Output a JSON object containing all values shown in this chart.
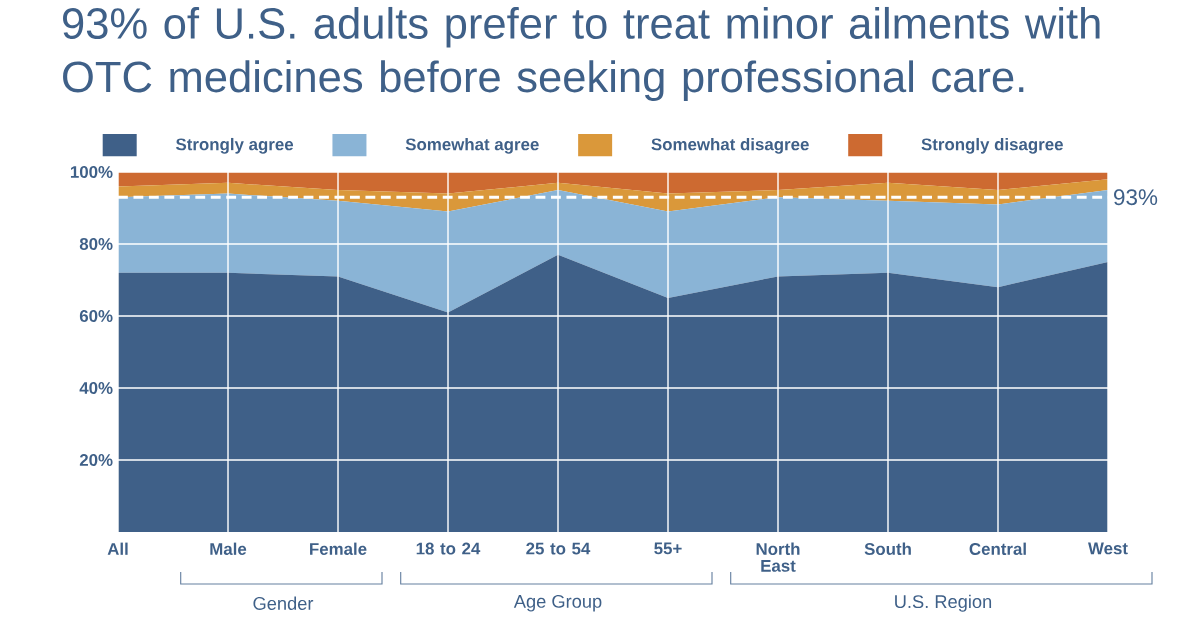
{
  "chart_data": {
    "type": "area",
    "stacked": true,
    "title": "93% of U.S. adults prefer to treat minor ailments with OTC medicines before seeking professional care.",
    "categories": [
      "All",
      "Male",
      "Female",
      "18 to 24",
      "25 to 54",
      "55+",
      "North East",
      "South",
      "Central",
      "West"
    ],
    "series": [
      {
        "name": "Strongly agree",
        "color": "#3f6088",
        "values": [
          72,
          72,
          71,
          61,
          77,
          65,
          71,
          72,
          68,
          75
        ]
      },
      {
        "name": "Somewhat agree",
        "color": "#8ab4d6",
        "values": [
          21,
          22,
          21,
          28,
          18,
          24,
          22,
          20,
          23,
          20
        ]
      },
      {
        "name": "Somewhat disagree",
        "color": "#da983a",
        "values": [
          3,
          3,
          3,
          5,
          2,
          5,
          2,
          5,
          4,
          3
        ]
      },
      {
        "name": "Strongly disagree",
        "color": "#cd6a31",
        "values": [
          4,
          3,
          5,
          6,
          3,
          6,
          5,
          3,
          5,
          2
        ]
      }
    ],
    "ylim": [
      0,
      100
    ],
    "yticks": [
      {
        "value": 20,
        "label": "20%"
      },
      {
        "value": 40,
        "label": "40%"
      },
      {
        "value": 60,
        "label": "60%"
      },
      {
        "value": 80,
        "label": "80%"
      },
      {
        "value": 100,
        "label": "100%"
      }
    ],
    "ref_lines": [
      {
        "axis": "y",
        "value": 93,
        "label": "93%",
        "color": "#ffffff",
        "line_style": "dashed"
      }
    ],
    "annotations": [
      "Gender",
      "Age Group",
      "U.S. Region"
    ],
    "grid": true,
    "legend": "top left"
  }
}
